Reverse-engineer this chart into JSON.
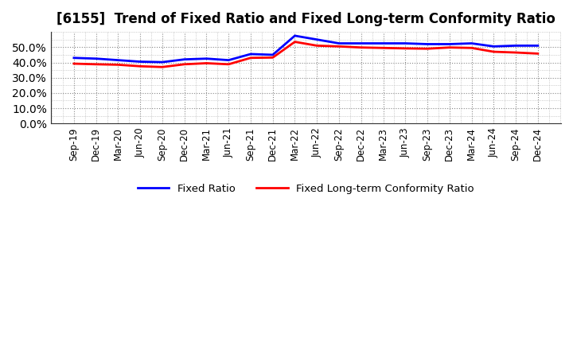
{
  "title": "[6155]  Trend of Fixed Ratio and Fixed Long-term Conformity Ratio",
  "x_labels": [
    "Sep-19",
    "Dec-19",
    "Mar-20",
    "Jun-20",
    "Sep-20",
    "Dec-20",
    "Mar-21",
    "Jun-21",
    "Sep-21",
    "Dec-21",
    "Mar-22",
    "Jun-22",
    "Sep-22",
    "Dec-22",
    "Mar-23",
    "Jun-23",
    "Sep-23",
    "Dec-23",
    "Mar-24",
    "Jun-24",
    "Sep-24",
    "Dec-24"
  ],
  "fixed_ratio": [
    43.0,
    42.5,
    41.5,
    40.5,
    40.2,
    42.0,
    42.5,
    41.5,
    45.5,
    45.0,
    57.5,
    55.0,
    52.5,
    52.5,
    52.5,
    52.5,
    52.0,
    52.0,
    52.5,
    50.5,
    51.0,
    51.0
  ],
  "fixed_lt_conformity": [
    39.2,
    38.8,
    38.5,
    37.5,
    37.0,
    38.8,
    39.5,
    38.8,
    43.0,
    43.2,
    53.5,
    51.0,
    50.5,
    49.8,
    49.5,
    49.2,
    49.0,
    49.8,
    49.5,
    47.0,
    46.5,
    45.8
  ],
  "fixed_ratio_color": "#0000ff",
  "fixed_lt_color": "#ff0000",
  "ylim": [
    0,
    60
  ],
  "yticks": [
    0,
    10,
    20,
    30,
    40,
    50
  ],
  "background_color": "#ffffff",
  "grid_color": "#888888",
  "title_fontsize": 12,
  "legend_fixed_ratio": "Fixed Ratio",
  "legend_fixed_lt": "Fixed Long-term Conformity Ratio"
}
